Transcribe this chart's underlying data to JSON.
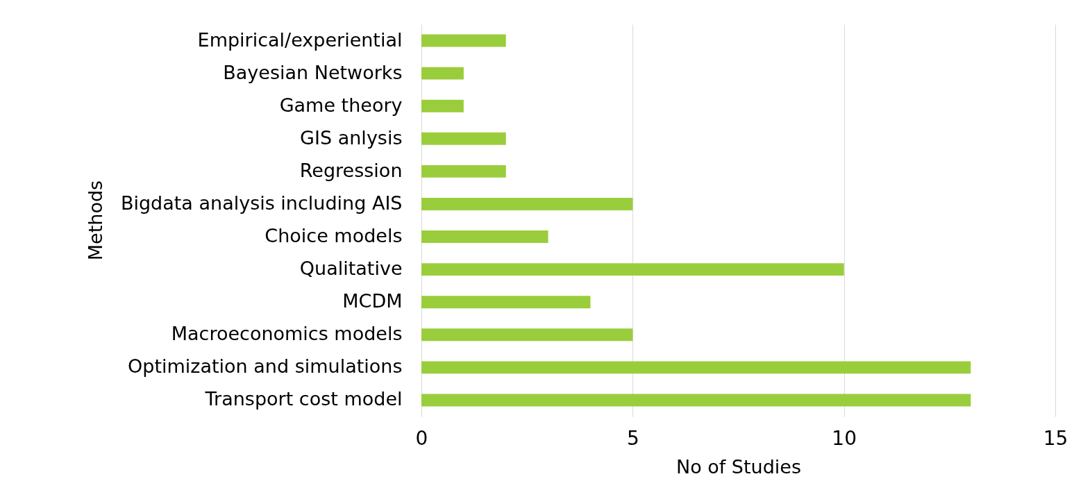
{
  "chart_data": {
    "type": "bar",
    "orientation": "horizontal",
    "xlabel": "No of Studies",
    "ylabel": "Methods",
    "categories": [
      "Empirical/experiential",
      "Bayesian Networks",
      "Game theory",
      "GIS anlysis",
      "Regression",
      "Bigdata analysis including AIS",
      "Choice models",
      "Qualitative",
      "MCDM",
      "Macroeconomics models",
      "Optimization and simulations",
      "Transport cost model"
    ],
    "values": [
      2,
      1,
      1,
      2,
      2,
      5,
      3,
      10,
      4,
      5,
      13,
      13
    ],
    "color": "#9acd3b",
    "xlim": [
      0,
      15
    ],
    "xticks": [
      0,
      5,
      10,
      15
    ],
    "grid": "x"
  }
}
